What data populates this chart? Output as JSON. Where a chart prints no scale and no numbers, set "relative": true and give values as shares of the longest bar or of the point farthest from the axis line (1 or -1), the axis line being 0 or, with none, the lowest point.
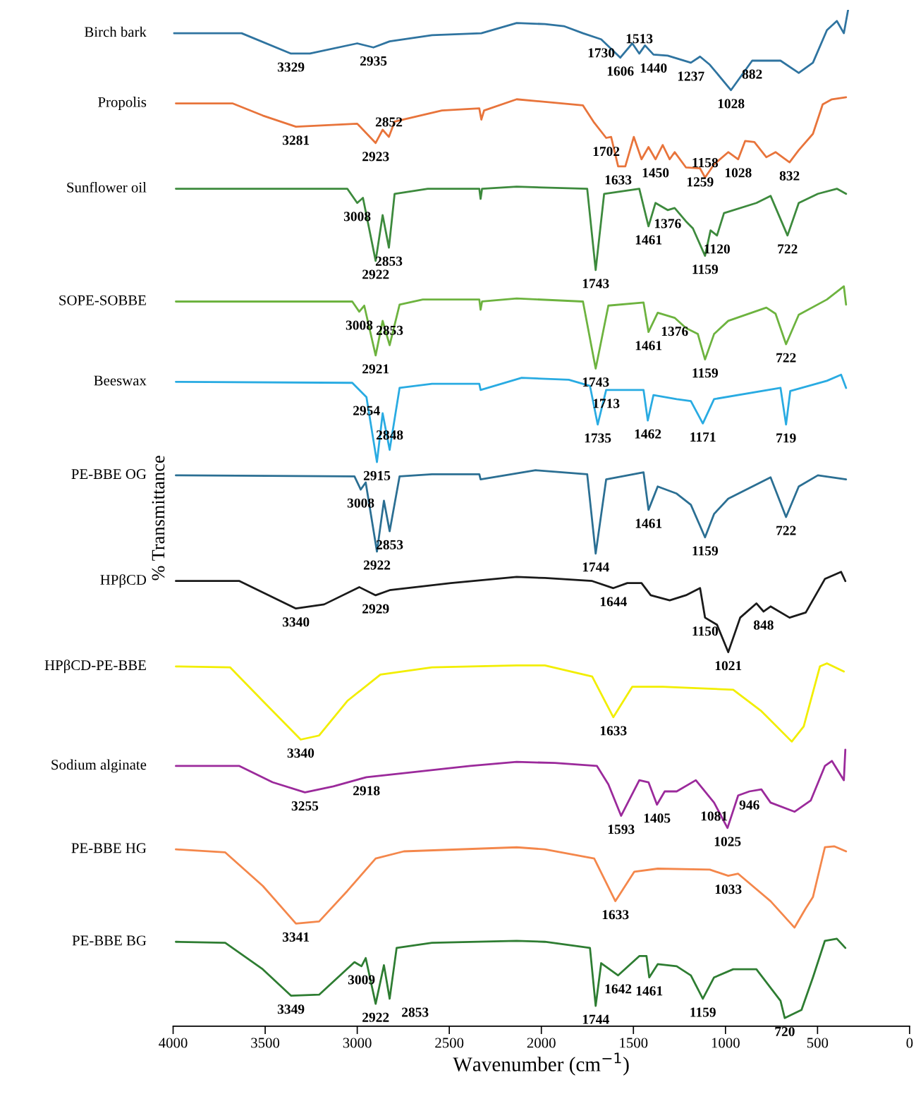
{
  "chart_data": {
    "type": "line",
    "xlabel": "Wavenumber (cm$^{−1}$)",
    "ylabel": "% Transmittance",
    "relative": true,
    "xlim": [
      4000,
      0
    ],
    "xticks": [
      4000,
      3500,
      3000,
      2500,
      2000,
      1500,
      1000,
      500,
      0
    ],
    "series": [
      {
        "name": "Birch bark",
        "color": "#2f74a0",
        "x": [
          3996,
          3628,
          3360,
          3257,
          3000,
          2912,
          2824,
          2594,
          2326,
          2134,
          1981,
          1878,
          1774,
          1675,
          1571,
          1506,
          1468,
          1437,
          1391,
          1314,
          1188,
          1138,
          1085,
          970,
          855,
          701,
          602,
          525,
          449,
          395,
          357,
          334
        ],
        "values": [
          0.977,
          0.977,
          0.957,
          0.957,
          0.967,
          0.963,
          0.969,
          0.975,
          0.977,
          0.987,
          0.986,
          0.984,
          0.977,
          0.971,
          0.953,
          0.967,
          0.957,
          0.965,
          0.956,
          0.955,
          0.948,
          0.954,
          0.946,
          0.921,
          0.95,
          0.95,
          0.938,
          0.948,
          0.98,
          0.989,
          0.977,
          1.0
        ]
      },
      {
        "name": "Propolis",
        "color": "#e8743b",
        "x": [
          3985,
          3678,
          3513,
          3333,
          3000,
          2900,
          2862,
          2828,
          2797,
          2540,
          2337,
          2326,
          2311,
          2134,
          1774,
          1713,
          1648,
          1621,
          1583,
          1544,
          1498,
          1456,
          1418,
          1380,
          1341,
          1303,
          1276,
          1215,
          1138,
          1111,
          1062,
          985,
          931,
          893,
          843,
          778,
          728,
          652,
          602,
          525,
          472,
          422,
          345
        ],
        "values": [
          0.908,
          0.908,
          0.896,
          0.885,
          0.888,
          0.869,
          0.882,
          0.875,
          0.89,
          0.901,
          0.903,
          0.892,
          0.901,
          0.912,
          0.906,
          0.889,
          0.874,
          0.875,
          0.846,
          0.846,
          0.875,
          0.853,
          0.865,
          0.853,
          0.867,
          0.853,
          0.86,
          0.845,
          0.844,
          0.835,
          0.848,
          0.86,
          0.853,
          0.871,
          0.87,
          0.855,
          0.86,
          0.85,
          0.862,
          0.878,
          0.907,
          0.912,
          0.914
        ]
      },
      {
        "name": "Sunflower oil",
        "color": "#3d8a3d",
        "x": [
          3985,
          3054,
          3000,
          2969,
          2900,
          2862,
          2828,
          2797,
          2617,
          2337,
          2330,
          2322,
          2134,
          1751,
          1705,
          1659,
          1468,
          1418,
          1380,
          1314,
          1276,
          1215,
          1177,
          1111,
          1081,
          1046,
          1008,
          832,
          755,
          663,
          602,
          498,
          395,
          345
        ],
        "values": [
          0.824,
          0.824,
          0.81,
          0.815,
          0.753,
          0.798,
          0.766,
          0.819,
          0.824,
          0.824,
          0.814,
          0.824,
          0.826,
          0.824,
          0.744,
          0.819,
          0.824,
          0.787,
          0.81,
          0.803,
          0.805,
          0.792,
          0.785,
          0.758,
          0.783,
          0.778,
          0.8,
          0.81,
          0.817,
          0.778,
          0.81,
          0.819,
          0.824,
          0.819
        ]
      },
      {
        "name": "SOPE-SOBBE",
        "color": "#6db33f",
        "x": [
          3985,
          3027,
          2989,
          2962,
          2900,
          2862,
          2824,
          2770,
          2644,
          2337,
          2330,
          2322,
          2134,
          1774,
          1705,
          1636,
          1445,
          1418,
          1368,
          1276,
          1215,
          1150,
          1111,
          1062,
          985,
          778,
          728,
          671,
          602,
          449,
          357,
          345
        ],
        "values": [
          0.713,
          0.713,
          0.703,
          0.709,
          0.66,
          0.694,
          0.67,
          0.71,
          0.715,
          0.715,
          0.705,
          0.713,
          0.716,
          0.713,
          0.647,
          0.709,
          0.712,
          0.683,
          0.702,
          0.697,
          0.687,
          0.681,
          0.656,
          0.681,
          0.694,
          0.707,
          0.701,
          0.671,
          0.7,
          0.715,
          0.728,
          0.71
        ]
      },
      {
        "name": "Beeswax",
        "color": "#29abe2",
        "x": [
          3985,
          3027,
          2950,
          2893,
          2862,
          2824,
          2770,
          2594,
          2337,
          2330,
          2107,
          1851,
          1736,
          1694,
          1648,
          1445,
          1422,
          1391,
          1265,
          1188,
          1123,
          1062,
          701,
          671,
          648,
          449,
          372,
          345
        ],
        "values": [
          0.634,
          0.633,
          0.619,
          0.555,
          0.603,
          0.567,
          0.628,
          0.632,
          0.632,
          0.626,
          0.638,
          0.636,
          0.63,
          0.592,
          0.626,
          0.626,
          0.596,
          0.621,
          0.617,
          0.615,
          0.593,
          0.617,
          0.628,
          0.592,
          0.625,
          0.635,
          0.641,
          0.628
        ]
      },
      {
        "name": "PE-BBE OG",
        "color": "#2b6f93",
        "x": [
          3985,
          3015,
          2981,
          2954,
          2893,
          2855,
          2824,
          2770,
          2594,
          2337,
          2330,
          2031,
          1751,
          1705,
          1648,
          1445,
          1418,
          1368,
          1265,
          1188,
          1111,
          1062,
          985,
          755,
          671,
          602,
          498,
          345
        ],
        "values": [
          0.542,
          0.541,
          0.528,
          0.535,
          0.467,
          0.517,
          0.487,
          0.541,
          0.543,
          0.543,
          0.538,
          0.547,
          0.543,
          0.465,
          0.538,
          0.545,
          0.508,
          0.531,
          0.524,
          0.513,
          0.481,
          0.504,
          0.519,
          0.54,
          0.501,
          0.531,
          0.542,
          0.538
        ]
      },
      {
        "name": "HPβCD",
        "color": "#1a1a1a",
        "x": [
          3985,
          3640,
          3333,
          3180,
          2989,
          2900,
          2824,
          2491,
          2134,
          1981,
          1724,
          1609,
          1533,
          1456,
          1406,
          1303,
          1215,
          1138,
          1111,
          1046,
          985,
          920,
          832,
          793,
          755,
          652,
          564,
          460,
          372,
          349
        ],
        "values": [
          0.438,
          0.438,
          0.411,
          0.415,
          0.432,
          0.424,
          0.429,
          0.436,
          0.442,
          0.441,
          0.438,
          0.431,
          0.436,
          0.436,
          0.424,
          0.419,
          0.424,
          0.431,
          0.402,
          0.395,
          0.368,
          0.402,
          0.416,
          0.408,
          0.413,
          0.402,
          0.407,
          0.44,
          0.447,
          0.438
        ]
      },
      {
        "name": "HPβCD-PE-BBE",
        "color": "#f2ee00",
        "x": [
          3985,
          3690,
          3513,
          3307,
          3207,
          3054,
          2874,
          2594,
          2134,
          1981,
          1724,
          1609,
          1506,
          1341,
          958,
          805,
          640,
          575,
          487,
          449,
          357
        ],
        "values": [
          0.354,
          0.353,
          0.32,
          0.282,
          0.286,
          0.32,
          0.346,
          0.353,
          0.355,
          0.355,
          0.344,
          0.304,
          0.334,
          0.334,
          0.331,
          0.31,
          0.28,
          0.295,
          0.354,
          0.357,
          0.349
        ]
      },
      {
        "name": "Sodium alginate",
        "color": "#9b2a9b",
        "x": [
          3985,
          3640,
          3460,
          3284,
          3130,
          2950,
          2747,
          2387,
          2134,
          1927,
          1698,
          1636,
          1567,
          1468,
          1418,
          1372,
          1330,
          1265,
          1161,
          1062,
          989,
          931,
          870,
          805,
          755,
          625,
          537,
          460,
          422,
          357,
          349
        ],
        "values": [
          0.256,
          0.256,
          0.24,
          0.23,
          0.236,
          0.245,
          0.249,
          0.256,
          0.26,
          0.259,
          0.256,
          0.238,
          0.207,
          0.242,
          0.24,
          0.218,
          0.231,
          0.231,
          0.242,
          0.22,
          0.195,
          0.227,
          0.231,
          0.233,
          0.22,
          0.211,
          0.222,
          0.256,
          0.261,
          0.242,
          0.272
        ]
      },
      {
        "name": "PE-BBE HG",
        "color": "#f4874b",
        "x": [
          3985,
          3717,
          3513,
          3333,
          3207,
          3054,
          2900,
          2747,
          2134,
          1981,
          1713,
          1598,
          1495,
          1368,
          1085,
          985,
          931,
          755,
          625,
          564,
          525,
          460,
          410,
          345
        ],
        "values": [
          0.174,
          0.171,
          0.138,
          0.101,
          0.103,
          0.133,
          0.165,
          0.172,
          0.176,
          0.174,
          0.165,
          0.123,
          0.152,
          0.155,
          0.154,
          0.148,
          0.15,
          0.123,
          0.097,
          0.116,
          0.127,
          0.176,
          0.177,
          0.172
        ]
      },
      {
        "name": "PE-BBE BG",
        "color": "#2e7d32",
        "x": [
          3985,
          3717,
          3513,
          3360,
          3207,
          3015,
          2977,
          2954,
          2900,
          2855,
          2824,
          2786,
          2594,
          2134,
          1981,
          1736,
          1705,
          1675,
          1583,
          1468,
          1429,
          1414,
          1368,
          1265,
          1188,
          1123,
          1062,
          958,
          832,
          701,
          678,
          587,
          525,
          460,
          395,
          349
        ],
        "values": [
          0.083,
          0.082,
          0.056,
          0.03,
          0.031,
          0.063,
          0.059,
          0.067,
          0.022,
          0.06,
          0.027,
          0.077,
          0.082,
          0.084,
          0.083,
          0.077,
          0.02,
          0.062,
          0.05,
          0.069,
          0.069,
          0.048,
          0.061,
          0.059,
          0.05,
          0.027,
          0.048,
          0.056,
          0.056,
          0.025,
          0.008,
          0.016,
          0.048,
          0.084,
          0.086,
          0.077
        ]
      }
    ],
    "annotations": [
      {
        "text": "3329",
        "x": 3360,
        "y": 0.957
      },
      {
        "text": "2935",
        "x": 2912,
        "y": 0.963
      },
      {
        "text": "1730",
        "x": 1675,
        "y": 0.971
      },
      {
        "text": "1606",
        "x": 1571,
        "y": 0.953
      },
      {
        "text": "1513",
        "x": 1468,
        "y": 0.957
      },
      {
        "text": "1440",
        "x": 1391,
        "y": 0.956
      },
      {
        "text": "1237",
        "x": 1188,
        "y": 0.948
      },
      {
        "text": "882",
        "x": 855,
        "y": 0.95
      },
      {
        "text": "1028",
        "x": 970,
        "y": 0.921
      },
      {
        "text": "3281",
        "x": 3333,
        "y": 0.885
      },
      {
        "text": "2923",
        "x": 2900,
        "y": 0.869
      },
      {
        "text": "2852",
        "x": 2828,
        "y": 0.875
      },
      {
        "text": "1702",
        "x": 1648,
        "y": 0.874
      },
      {
        "text": "1633",
        "x": 1583,
        "y": 0.846
      },
      {
        "text": "1450",
        "x": 1380,
        "y": 0.853
      },
      {
        "text": "1259",
        "x": 1138,
        "y": 0.844
      },
      {
        "text": "1158",
        "x": 1111,
        "y": 0.835
      },
      {
        "text": "1028",
        "x": 931,
        "y": 0.853
      },
      {
        "text": "832",
        "x": 652,
        "y": 0.85
      },
      {
        "text": "3008",
        "x": 3000,
        "y": 0.81
      },
      {
        "text": "2922",
        "x": 2900,
        "y": 0.753
      },
      {
        "text": "2853",
        "x": 2828,
        "y": 0.766
      },
      {
        "text": "1743",
        "x": 1705,
        "y": 0.744
      },
      {
        "text": "1461",
        "x": 1418,
        "y": 0.787
      },
      {
        "text": "1376",
        "x": 1314,
        "y": 0.803
      },
      {
        "text": "1120",
        "x": 1046,
        "y": 0.778
      },
      {
        "text": "1159",
        "x": 1111,
        "y": 0.758
      },
      {
        "text": "722",
        "x": 663,
        "y": 0.778
      },
      {
        "text": "3008",
        "x": 2989,
        "y": 0.703
      },
      {
        "text": "2921",
        "x": 2900,
        "y": 0.66
      },
      {
        "text": "2853",
        "x": 2824,
        "y": 0.67
      },
      {
        "text": "1743",
        "x": 1705,
        "y": 0.647
      },
      {
        "text": "1461",
        "x": 1418,
        "y": 0.683
      },
      {
        "text": "1376",
        "x": 1276,
        "y": 0.697
      },
      {
        "text": "1159",
        "x": 1111,
        "y": 0.656
      },
      {
        "text": "722",
        "x": 671,
        "y": 0.671
      },
      {
        "text": "2954",
        "x": 2950,
        "y": 0.619
      },
      {
        "text": "2915",
        "x": 2893,
        "y": 0.555
      },
      {
        "text": "2848",
        "x": 2824,
        "y": 0.567
      },
      {
        "text": "1735",
        "x": 1694,
        "y": 0.592
      },
      {
        "text": "1713",
        "x": 1648,
        "y": 0.626
      },
      {
        "text": "1462",
        "x": 1422,
        "y": 0.596
      },
      {
        "text": "1171",
        "x": 1123,
        "y": 0.593
      },
      {
        "text": "719",
        "x": 671,
        "y": 0.592
      },
      {
        "text": "3008",
        "x": 2981,
        "y": 0.528
      },
      {
        "text": "2922",
        "x": 2893,
        "y": 0.467
      },
      {
        "text": "2853",
        "x": 2824,
        "y": 0.487
      },
      {
        "text": "1744",
        "x": 1705,
        "y": 0.465
      },
      {
        "text": "1461",
        "x": 1418,
        "y": 0.508
      },
      {
        "text": "1159",
        "x": 1111,
        "y": 0.481
      },
      {
        "text": "722",
        "x": 671,
        "y": 0.501
      },
      {
        "text": "3340",
        "x": 3333,
        "y": 0.411
      },
      {
        "text": "2929",
        "x": 2900,
        "y": 0.424
      },
      {
        "text": "1644",
        "x": 1609,
        "y": 0.431
      },
      {
        "text": "1150",
        "x": 1111,
        "y": 0.402
      },
      {
        "text": "848",
        "x": 793,
        "y": 0.408
      },
      {
        "text": "1021",
        "x": 985,
        "y": 0.368
      },
      {
        "text": "3340",
        "x": 3307,
        "y": 0.282
      },
      {
        "text": "1633",
        "x": 1609,
        "y": 0.304
      },
      {
        "text": "3255",
        "x": 3284,
        "y": 0.23
      },
      {
        "text": "2918",
        "x": 2950,
        "y": 0.245
      },
      {
        "text": "1593",
        "x": 1567,
        "y": 0.207
      },
      {
        "text": "1405",
        "x": 1372,
        "y": 0.218
      },
      {
        "text": "1081",
        "x": 1062,
        "y": 0.22
      },
      {
        "text": "1025",
        "x": 989,
        "y": 0.195
      },
      {
        "text": "946",
        "x": 870,
        "y": 0.231
      },
      {
        "text": "3341",
        "x": 3333,
        "y": 0.101
      },
      {
        "text": "1633",
        "x": 1598,
        "y": 0.123
      },
      {
        "text": "1033",
        "x": 985,
        "y": 0.148
      },
      {
        "text": "3349",
        "x": 3360,
        "y": 0.03
      },
      {
        "text": "3009",
        "x": 2977,
        "y": 0.059
      },
      {
        "text": "2922",
        "x": 2900,
        "y": 0.022
      },
      {
        "text": "2853",
        "x": 2824,
        "y": 0.027
      },
      {
        "text": "1744",
        "x": 1705,
        "y": 0.02
      },
      {
        "text": "1642",
        "x": 1583,
        "y": 0.05
      },
      {
        "text": "1461",
        "x": 1414,
        "y": 0.048
      },
      {
        "text": "1159",
        "x": 1123,
        "y": 0.027
      },
      {
        "text": "720",
        "x": 678,
        "y": 0.008
      }
    ]
  }
}
